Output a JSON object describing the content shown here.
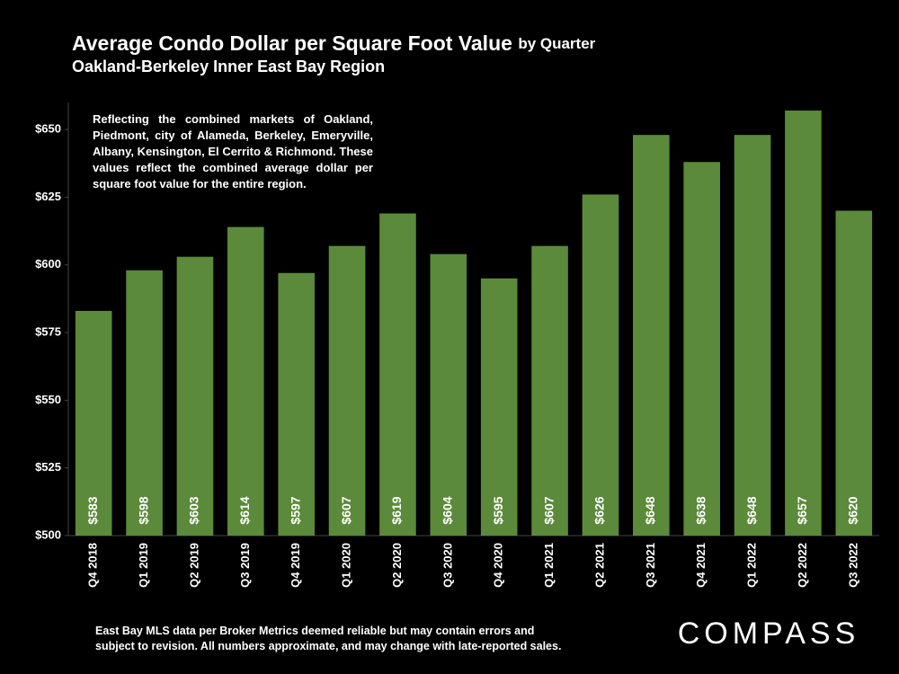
{
  "chart_data": {
    "type": "bar",
    "title": "Average Condo Dollar per Square Foot Value",
    "title_suffix": "by Quarter",
    "subtitle": "Oakland-Berkeley Inner East Bay Region",
    "annotation": "Reflecting the combined markets of Oakland, Piedmont, city of Alameda, Berkeley, Emeryville, Albany, Kensington, El Cerrito & Richmond. These values reflect the combined average dollar per square foot value for the entire region.",
    "categories": [
      "Q4 2018",
      "Q1 2019",
      "Q2 2019",
      "Q3 2019",
      "Q4 2019",
      "Q1 2020",
      "Q2 2020",
      "Q3 2020",
      "Q4 2020",
      "Q1 2021",
      "Q2 2021",
      "Q3 2021",
      "Q4 2021",
      "Q1 2022",
      "Q2 2022",
      "Q3 2022"
    ],
    "values": [
      583,
      598,
      603,
      614,
      597,
      607,
      619,
      604,
      595,
      607,
      626,
      648,
      638,
      648,
      657,
      620
    ],
    "value_labels": [
      "$583",
      "$598",
      "$603",
      "$614",
      "$597",
      "$607",
      "$619",
      "$604",
      "$595",
      "$607",
      "$626",
      "$648",
      "$638",
      "$648",
      "$657",
      "$620"
    ],
    "color": "#5b8a3a",
    "ylim": [
      500,
      660
    ],
    "yticks": [
      {
        "value": 500,
        "label": "$500"
      },
      {
        "value": 525,
        "label": "$525"
      },
      {
        "value": 550,
        "label": "$550"
      },
      {
        "value": 575,
        "label": "$575"
      },
      {
        "value": 600,
        "label": "$600"
      },
      {
        "value": 625,
        "label": "$625"
      },
      {
        "value": 650,
        "label": "$650"
      }
    ],
    "grid": false,
    "source": "East Bay MLS data per Broker Metrics  deemed reliable but may contain errors and subject to revision. All numbers approximate, and may change with late-reported sales.",
    "logo": "COMPASS"
  }
}
